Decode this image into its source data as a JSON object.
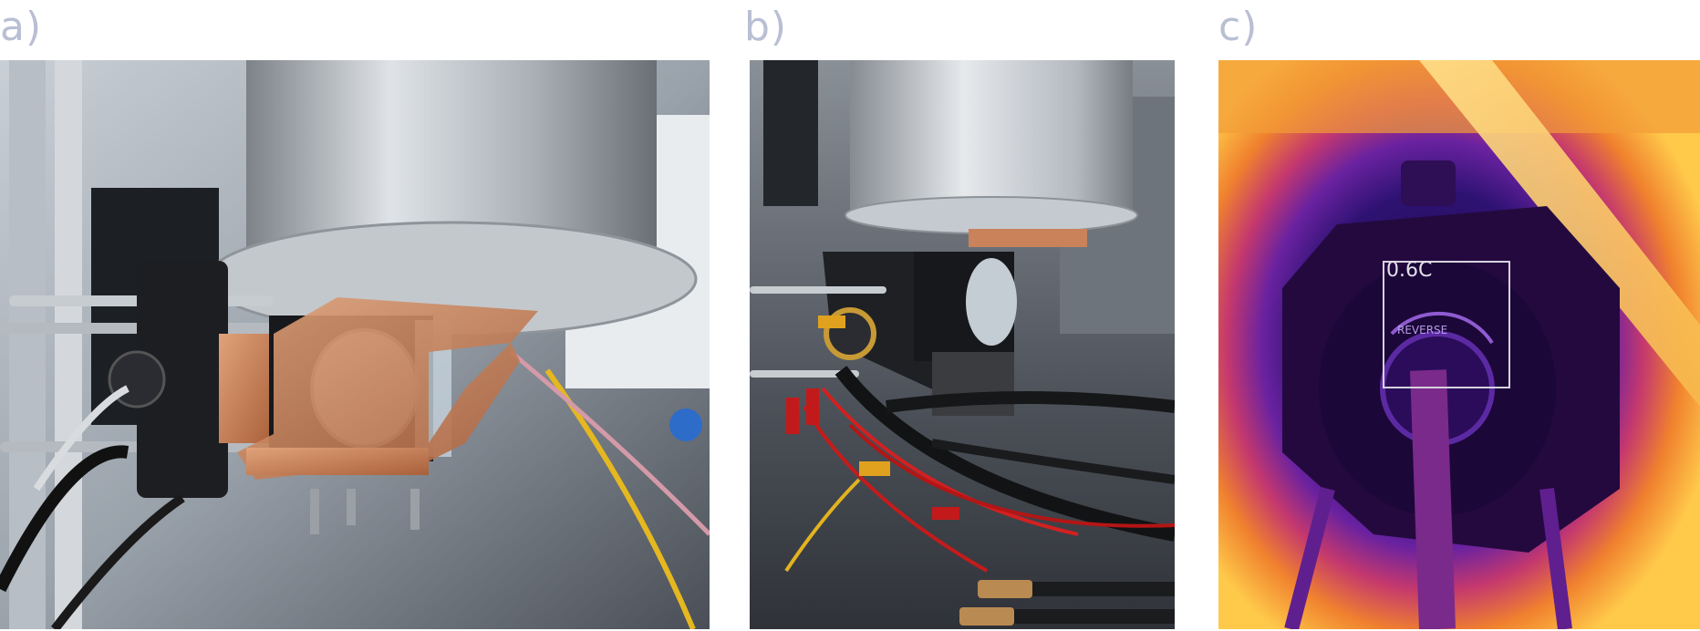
{
  "panels": [
    {
      "label": "a)",
      "description_icon": "photo-icon"
    },
    {
      "label": "b)",
      "description_icon": "photo-icon"
    },
    {
      "label": "c)",
      "description_icon": "thermal-icon"
    }
  ],
  "thermal": {
    "reading": "0.6C",
    "dial_text": "REVERSE"
  },
  "colors": {
    "label": "#b9bfd3",
    "copper": "#c9825a",
    "thermal_hot": "#ffd34d",
    "thermal_cold": "#2a0d5a"
  }
}
